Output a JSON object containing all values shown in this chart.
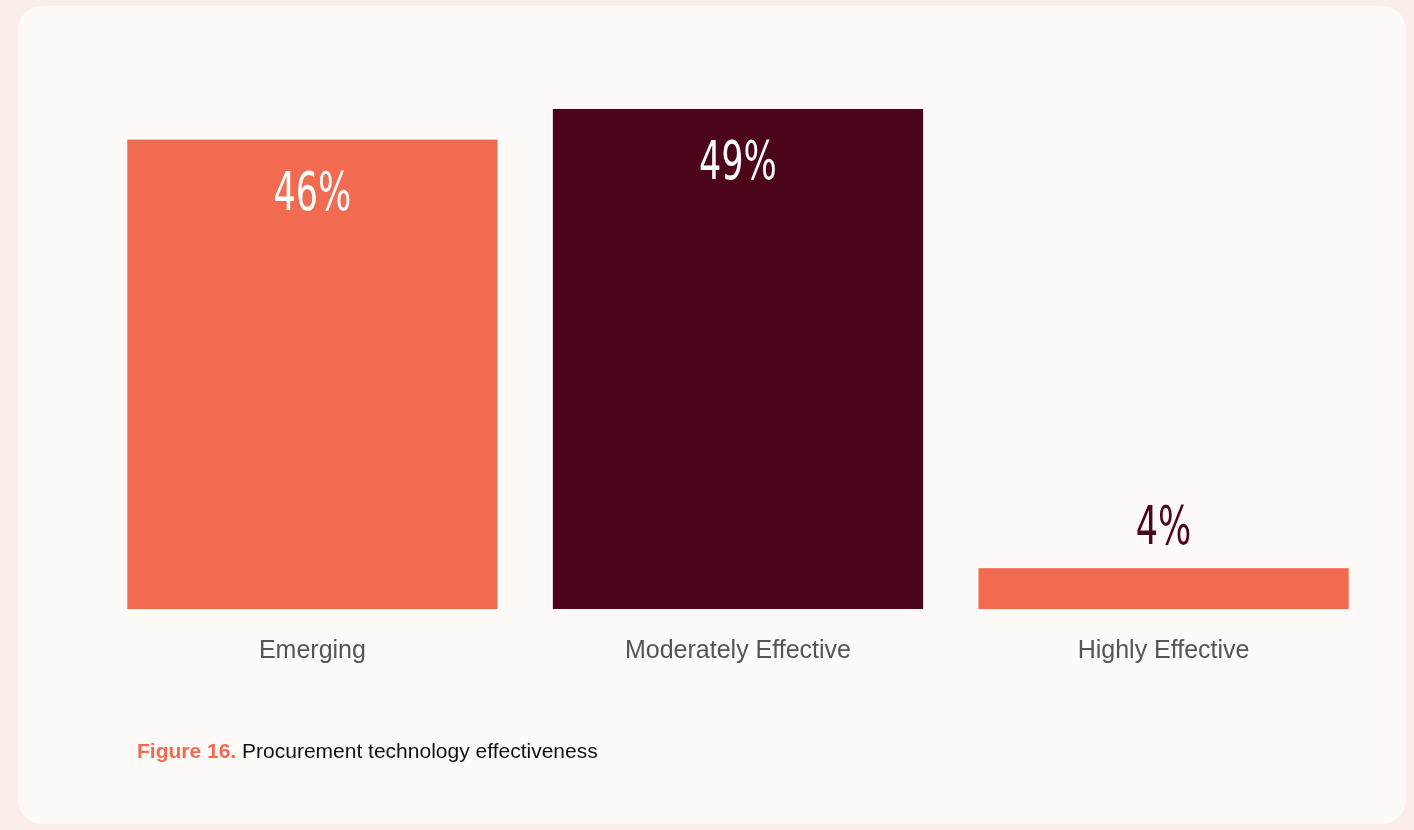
{
  "chart_data": {
    "type": "bar",
    "categories": [
      "Emerging",
      "Moderately Effective",
      "Highly Effective"
    ],
    "values": [
      46,
      49,
      4
    ],
    "colors": [
      "#f26b50",
      "#4d0519",
      "#f26b50"
    ],
    "value_labels": [
      "46%",
      "49%",
      "4%"
    ],
    "annotations": [
      "Figure 16. Procurement technology effectiveness"
    ]
  }
}
